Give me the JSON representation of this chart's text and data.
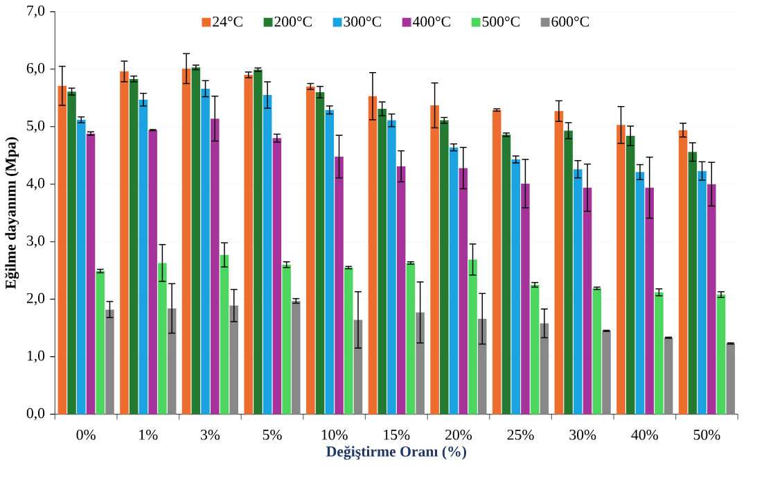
{
  "chart_data": {
    "type": "bar",
    "xlabel": "Değiştirme Oranı (%)",
    "ylabel": "Eğilme dayanımı (Mpa)",
    "categories": [
      "0%",
      "1%",
      "3%",
      "5%",
      "10%",
      "15%",
      "20%",
      "25%",
      "30%",
      "40%",
      "50%"
    ],
    "series": [
      {
        "name": "24°C",
        "color": "#ed6d2f",
        "values": [
          5.71,
          5.96,
          6.01,
          5.9,
          5.7,
          5.53,
          5.37,
          5.29,
          5.27,
          5.03,
          4.94
        ],
        "errors": [
          0.34,
          0.18,
          0.26,
          0.05,
          0.05,
          0.41,
          0.39,
          0.02,
          0.18,
          0.32,
          0.12
        ]
      },
      {
        "name": "200°C",
        "color": "#237a30",
        "values": [
          5.61,
          5.83,
          6.03,
          5.99,
          5.6,
          5.31,
          5.11,
          4.86,
          4.93,
          4.84,
          4.56
        ],
        "errors": [
          0.06,
          0.05,
          0.04,
          0.03,
          0.1,
          0.12,
          0.05,
          0.03,
          0.14,
          0.17,
          0.16
        ]
      },
      {
        "name": "300°C",
        "color": "#1aa3e0",
        "values": [
          5.12,
          5.47,
          5.66,
          5.55,
          5.29,
          5.11,
          4.64,
          4.43,
          4.26,
          4.21,
          4.23
        ],
        "errors": [
          0.05,
          0.11,
          0.14,
          0.23,
          0.07,
          0.11,
          0.06,
          0.06,
          0.15,
          0.13,
          0.16
        ]
      },
      {
        "name": "400°C",
        "color": "#a6339a",
        "values": [
          4.88,
          4.94,
          5.14,
          4.8,
          4.48,
          4.31,
          4.28,
          4.01,
          3.94,
          3.94,
          4.0
        ],
        "errors": [
          0.03,
          0.01,
          0.39,
          0.07,
          0.37,
          0.27,
          0.36,
          0.42,
          0.41,
          0.53,
          0.38
        ]
      },
      {
        "name": "500°C",
        "color": "#4cd55f",
        "values": [
          2.49,
          2.63,
          2.77,
          2.6,
          2.55,
          2.63,
          2.69,
          2.25,
          2.19,
          2.12,
          2.08
        ],
        "errors": [
          0.03,
          0.32,
          0.21,
          0.05,
          0.02,
          0.02,
          0.27,
          0.04,
          0.02,
          0.06,
          0.05
        ]
      },
      {
        "name": "600°C",
        "color": "#888888",
        "values": [
          1.82,
          1.84,
          1.89,
          1.97,
          1.64,
          1.77,
          1.66,
          1.58,
          1.45,
          1.33,
          1.23
        ],
        "errors": [
          0.14,
          0.43,
          0.28,
          0.04,
          0.49,
          0.53,
          0.44,
          0.25,
          0.01,
          0.01,
          0.01
        ]
      }
    ],
    "ylim": [
      0,
      7
    ],
    "yticks": [
      {
        "value": 0,
        "label": "0,0"
      },
      {
        "value": 1,
        "label": "1,0"
      },
      {
        "value": 2,
        "label": "2,0"
      },
      {
        "value": 3,
        "label": "3,0"
      },
      {
        "value": 4,
        "label": "4,0"
      },
      {
        "value": 5,
        "label": "5,0"
      },
      {
        "value": 6,
        "label": "6,0"
      },
      {
        "value": 7,
        "label": "7,0"
      }
    ],
    "grid": "y",
    "legend": "top"
  }
}
